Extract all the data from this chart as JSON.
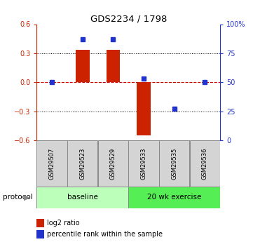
{
  "title": "GDS2234 / 1798",
  "samples": [
    "GSM29507",
    "GSM29523",
    "GSM29529",
    "GSM29533",
    "GSM29535",
    "GSM29536"
  ],
  "log2_ratio": [
    0.0,
    0.335,
    0.335,
    -0.55,
    0.0,
    0.0
  ],
  "percentile_rank": [
    50.0,
    87.0,
    87.0,
    53.0,
    27.0,
    50.0
  ],
  "ylim_left": [
    -0.6,
    0.6
  ],
  "ylim_right": [
    0,
    100
  ],
  "left_ticks": [
    -0.6,
    -0.3,
    0.0,
    0.3,
    0.6
  ],
  "right_ticks": [
    0,
    25,
    50,
    75,
    100
  ],
  "right_tick_labels": [
    "0",
    "25",
    "50",
    "75",
    "100%"
  ],
  "bar_color": "#cc2200",
  "dot_color": "#2233cc",
  "zero_line_color": "#cc0000",
  "grid_color": "#000000",
  "protocol_groups": [
    {
      "label": "baseline",
      "start": 0,
      "end": 3,
      "color": "#bbffbb"
    },
    {
      "label": "20 wk exercise",
      "start": 3,
      "end": 6,
      "color": "#55ee55"
    }
  ],
  "protocol_label": "protocol",
  "legend_items": [
    {
      "color": "#cc2200",
      "label": "log2 ratio"
    },
    {
      "color": "#2233cc",
      "label": "percentile rank within the sample"
    }
  ],
  "bar_width": 0.45
}
